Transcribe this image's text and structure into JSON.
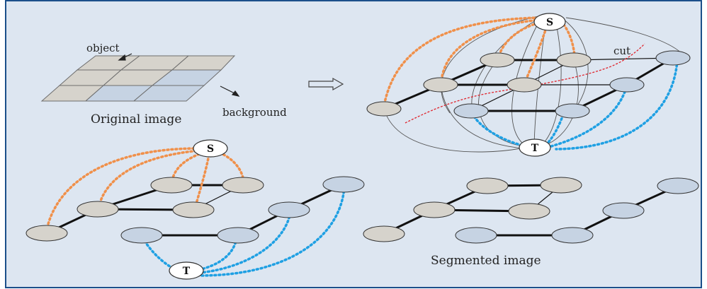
{
  "labels": {
    "object": "object",
    "background": "background",
    "original_image": "Original image",
    "cut": "cut",
    "segmented_image": "Segmented image",
    "source": "S",
    "sink": "T"
  },
  "colors": {
    "panel_bg": "#dde6f1",
    "border": "#1b4f8a",
    "object_fill": "#d6d3cc",
    "background_fill": "#c6d3e3",
    "orange_link": "#f0904a",
    "blue_link": "#1fa0e3",
    "cut_line": "#e0242c",
    "edge": "#111111",
    "thin_edge": "#555555"
  },
  "icons": {
    "transform_arrow": "right-hollow-arrow-icon"
  }
}
